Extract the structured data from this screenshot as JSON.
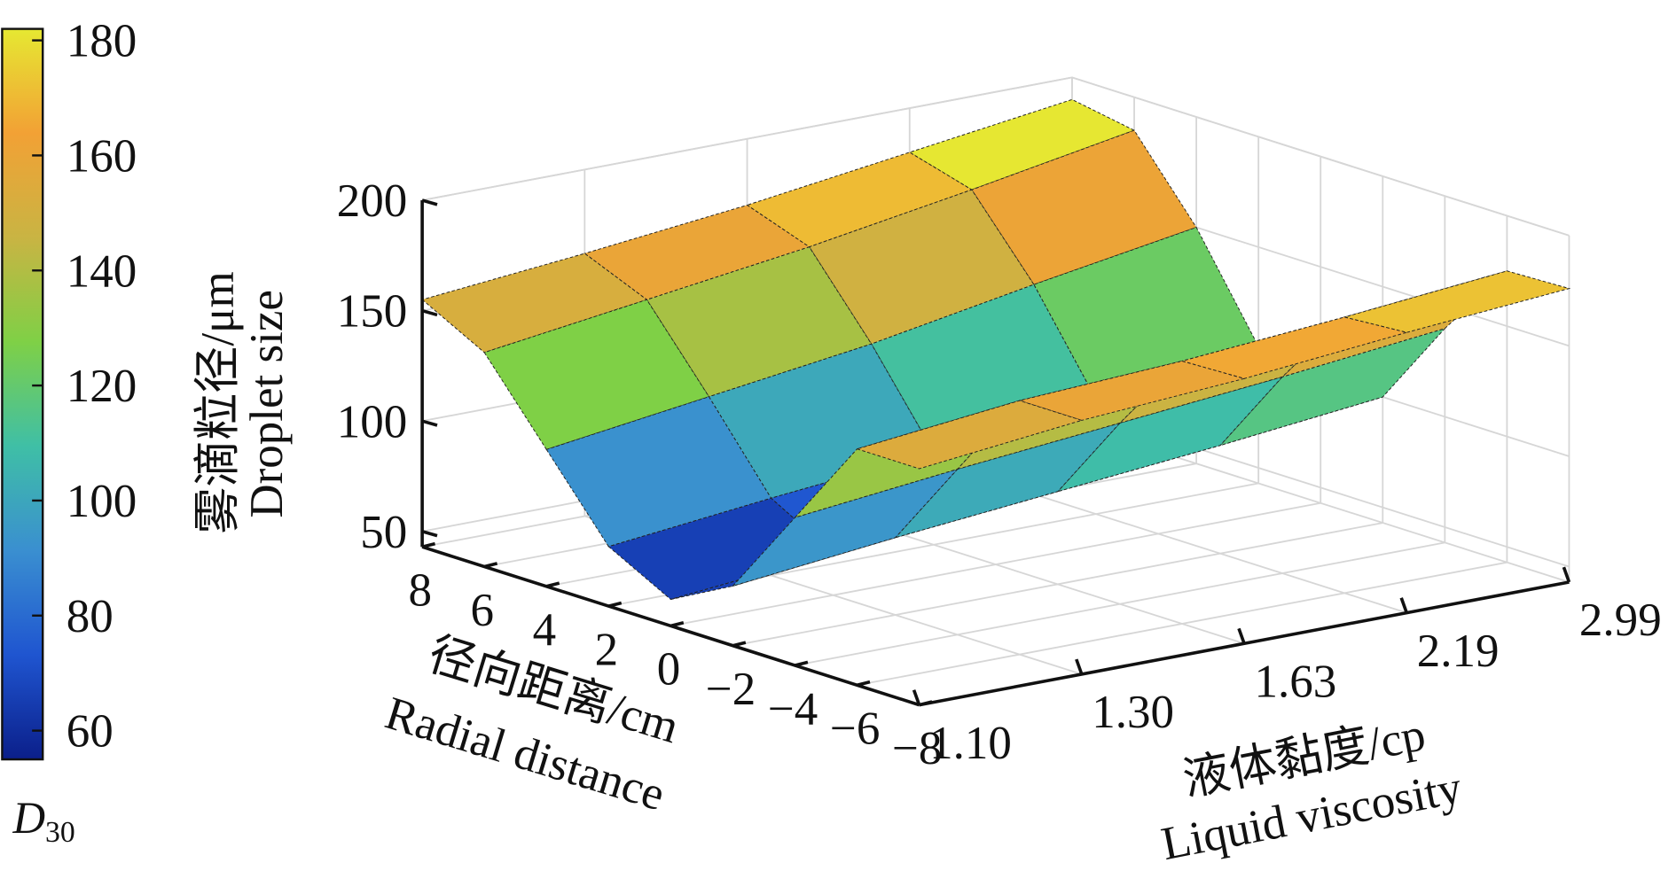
{
  "chart_data": {
    "type": "surface",
    "title": "",
    "x_axis": {
      "label_cn": "径向距离/cm",
      "label_en": "Radial distance",
      "ticks": [
        "8",
        "6",
        "4",
        "2",
        "0",
        "−2",
        "−4",
        "−6",
        "−8"
      ],
      "values": [
        8,
        6,
        4,
        2,
        0,
        -2,
        -4,
        -6,
        -8
      ],
      "range": [
        -8,
        8
      ]
    },
    "y_axis": {
      "label_cn": "液体黏度/cp",
      "label_en": "Liquid viscosity",
      "ticks": [
        "1.10",
        "1.30",
        "1.63",
        "2.19",
        "2.99"
      ],
      "values": [
        1.1,
        1.3,
        1.63,
        2.19,
        2.99
      ]
    },
    "z_axis": {
      "label_cn": "雾滴粒径/μm",
      "label_en": "Droplet size",
      "ticks": [
        "50",
        "100",
        "150",
        "200"
      ],
      "range": [
        43,
        200
      ]
    },
    "colorbar": {
      "label": "D",
      "label_sub": "30",
      "ticks": [
        "60",
        "80",
        "100",
        "120",
        "140",
        "160",
        "180"
      ],
      "range": [
        55,
        182
      ],
      "colors": [
        "#0b1f8a",
        "#1f55d0",
        "#3a8fd0",
        "#3fbfa6",
        "#7fd046",
        "#c9b443",
        "#f2a135",
        "#e6e832"
      ]
    },
    "z_values": [
      [
        155,
        140,
        105,
        70,
        55,
        70,
        110,
        150,
        150
      ],
      [
        162,
        150,
        115,
        78,
        62,
        78,
        118,
        158,
        158
      ],
      [
        170,
        160,
        125,
        85,
        70,
        85,
        125,
        162,
        163
      ],
      [
        180,
        172,
        138,
        95,
        80,
        92,
        132,
        168,
        170
      ],
      [
        190,
        185,
        150,
        105,
        90,
        100,
        140,
        175,
        176
      ]
    ],
    "grid": true
  }
}
